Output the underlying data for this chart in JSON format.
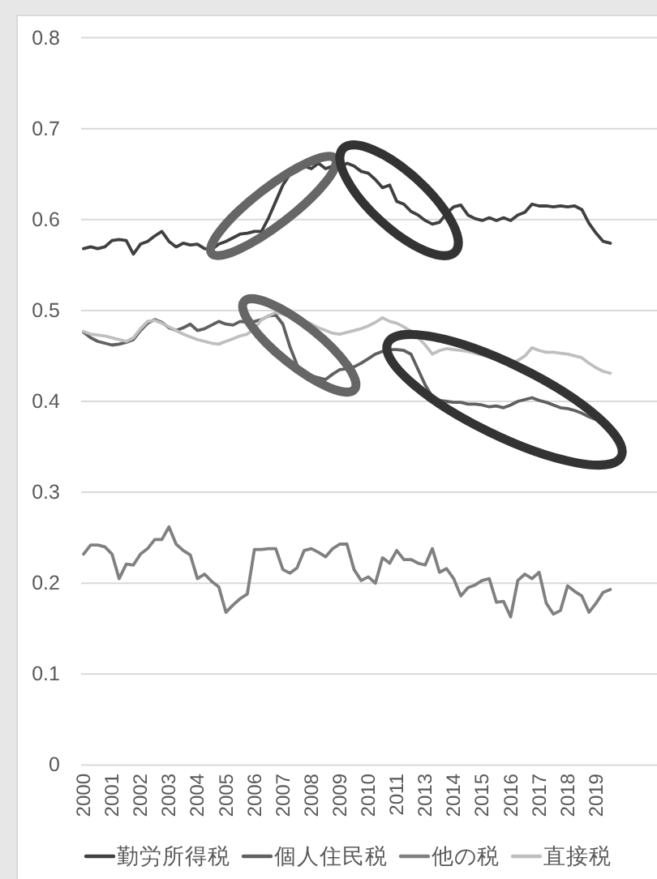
{
  "chart_data": {
    "type": "line",
    "categories": [
      "2000",
      null,
      null,
      null,
      "2001",
      null,
      null,
      null,
      "2002",
      null,
      null,
      null,
      "2003",
      null,
      null,
      null,
      "2004",
      null,
      null,
      null,
      "2005",
      null,
      null,
      null,
      "2006",
      null,
      null,
      null,
      "2007",
      null,
      null,
      null,
      "2008",
      null,
      null,
      null,
      "2009",
      null,
      null,
      null,
      "2010",
      null,
      null,
      null,
      "2011",
      null,
      null,
      null,
      "2013",
      null,
      null,
      null,
      "2014",
      null,
      null,
      null,
      "2015",
      null,
      null,
      null,
      "2016",
      null,
      null,
      null,
      "2017",
      null,
      null,
      null,
      "2018",
      null,
      null,
      null,
      "2019",
      null,
      null
    ],
    "series": [
      {
        "name": "勤労所得税",
        "color": "#404040",
        "values": [
          0.568,
          0.57,
          0.568,
          0.57,
          0.577,
          0.578,
          0.577,
          0.562,
          0.573,
          0.576,
          0.582,
          0.587,
          0.576,
          0.57,
          0.574,
          0.572,
          0.573,
          0.568,
          0.567,
          0.573,
          0.576,
          0.58,
          0.584,
          0.585,
          0.587,
          0.587,
          0.602,
          0.62,
          0.638,
          0.65,
          0.653,
          0.659,
          0.656,
          0.662,
          0.656,
          0.659,
          0.657,
          0.662,
          0.659,
          0.653,
          0.651,
          0.644,
          0.635,
          0.638,
          0.62,
          0.617,
          0.609,
          0.605,
          0.599,
          0.595,
          0.597,
          0.607,
          0.614,
          0.616,
          0.605,
          0.601,
          0.599,
          0.602,
          0.599,
          0.602,
          0.599,
          0.605,
          0.608,
          0.617,
          0.615,
          0.615,
          0.614,
          0.615,
          0.614,
          0.615,
          0.611,
          0.596,
          0.585,
          0.576,
          0.574
        ]
      },
      {
        "name": "個人住民税",
        "color": "#606060",
        "values": [
          0.476,
          0.47,
          0.466,
          0.464,
          0.462,
          0.463,
          0.465,
          0.468,
          0.478,
          0.486,
          0.49,
          0.487,
          0.481,
          0.478,
          0.481,
          0.485,
          0.478,
          0.48,
          0.484,
          0.488,
          0.485,
          0.484,
          0.488,
          0.487,
          0.488,
          0.49,
          0.494,
          0.495,
          0.485,
          0.46,
          0.44,
          0.43,
          0.428,
          0.426,
          0.424,
          0.43,
          0.435,
          0.436,
          0.438,
          0.442,
          0.447,
          0.452,
          0.455,
          0.457,
          0.457,
          0.456,
          0.452,
          0.435,
          0.418,
          0.405,
          0.401,
          0.4,
          0.399,
          0.399,
          0.397,
          0.397,
          0.396,
          0.394,
          0.395,
          0.393,
          0.396,
          0.4,
          0.402,
          0.404,
          0.401,
          0.399,
          0.396,
          0.393,
          0.392,
          0.39,
          0.387,
          0.383,
          0.38,
          0.375,
          0.372
        ]
      },
      {
        "name": "他の税",
        "color": "#808080",
        "values": [
          0.232,
          0.242,
          0.242,
          0.24,
          0.232,
          0.205,
          0.221,
          0.22,
          0.232,
          0.238,
          0.248,
          0.248,
          0.262,
          0.243,
          0.236,
          0.231,
          0.205,
          0.21,
          0.202,
          0.196,
          0.168,
          0.176,
          0.183,
          0.188,
          0.237,
          0.237,
          0.238,
          0.238,
          0.215,
          0.211,
          0.217,
          0.236,
          0.238,
          0.234,
          0.229,
          0.238,
          0.243,
          0.243,
          0.215,
          0.203,
          0.207,
          0.2,
          0.228,
          0.222,
          0.236,
          0.226,
          0.226,
          0.222,
          0.22,
          0.238,
          0.212,
          0.216,
          0.205,
          0.186,
          0.195,
          0.198,
          0.203,
          0.205,
          0.179,
          0.18,
          0.163,
          0.203,
          0.21,
          0.205,
          0.212,
          0.178,
          0.166,
          0.17,
          0.197,
          0.191,
          0.186,
          0.168,
          0.178,
          0.19,
          0.193
        ]
      },
      {
        "name": "直接税",
        "color": "#bfbfbf",
        "values": [
          0.477,
          0.474,
          0.473,
          0.472,
          0.47,
          0.468,
          0.466,
          0.47,
          0.48,
          0.488,
          0.489,
          0.486,
          0.482,
          0.478,
          0.474,
          0.471,
          0.468,
          0.466,
          0.464,
          0.463,
          0.466,
          0.469,
          0.472,
          0.474,
          0.48,
          0.49,
          0.494,
          0.498,
          0.496,
          0.494,
          0.491,
          0.489,
          0.485,
          0.481,
          0.478,
          0.475,
          0.474,
          0.476,
          0.478,
          0.48,
          0.483,
          0.487,
          0.492,
          0.488,
          0.486,
          0.482,
          0.477,
          0.47,
          0.462,
          0.452,
          0.456,
          0.458,
          0.457,
          0.456,
          0.455,
          0.453,
          0.451,
          0.449,
          0.447,
          0.444,
          0.442,
          0.445,
          0.45,
          0.459,
          0.456,
          0.454,
          0.454,
          0.453,
          0.452,
          0.45,
          0.448,
          0.442,
          0.437,
          0.433,
          0.431
        ]
      }
    ],
    "ylim": [
      0,
      0.8
    ],
    "yticks": [
      0,
      0.1,
      0.2,
      0.3,
      0.4,
      0.5,
      0.6,
      0.7,
      0.8
    ],
    "grid": "y",
    "legend": "bottom"
  }
}
